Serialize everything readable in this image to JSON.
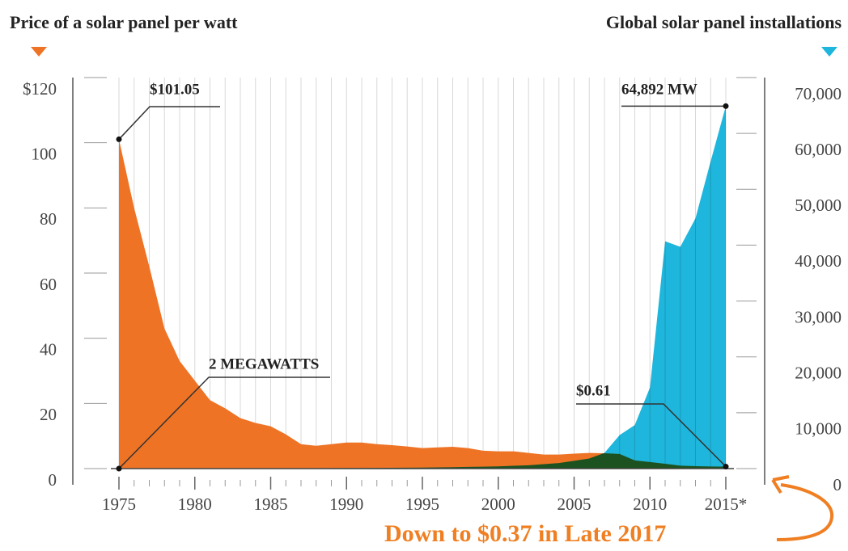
{
  "chart_data": {
    "type": "area",
    "left_axis_title": "Price of a solar panel per watt",
    "right_axis_title": "Global solar panel installations",
    "x": [
      1975,
      1976,
      1977,
      1978,
      1979,
      1980,
      1981,
      1982,
      1983,
      1984,
      1985,
      1986,
      1987,
      1988,
      1989,
      1990,
      1991,
      1992,
      1993,
      1994,
      1995,
      1996,
      1997,
      1998,
      1999,
      2000,
      2001,
      2002,
      2003,
      2004,
      2005,
      2006,
      2007,
      2008,
      2009,
      2010,
      2011,
      2012,
      2013,
      2014,
      2015
    ],
    "xlim": [
      1975,
      2015
    ],
    "xticks": [
      1975,
      1980,
      1985,
      1990,
      1995,
      2000,
      2005,
      2010,
      {
        "value": 2015,
        "label": "2015*"
      }
    ],
    "ylim": [
      0,
      120
    ],
    "yticks": [
      0,
      20,
      40,
      60,
      80,
      100,
      {
        "value": 120,
        "label": "$120"
      }
    ],
    "y2lim": [
      0,
      70000
    ],
    "y2ticks": [
      0,
      {
        "value": 10000,
        "label": "10,000"
      },
      {
        "value": 20000,
        "label": "20,000"
      },
      {
        "value": 30000,
        "label": "30,000"
      },
      {
        "value": 40000,
        "label": "40,000"
      },
      {
        "value": 50000,
        "label": "50,000"
      },
      {
        "value": 60000,
        "label": "60,000"
      },
      {
        "value": 70000,
        "label": "70,000"
      }
    ],
    "series": [
      {
        "name": "Price of a solar panel per watt",
        "color": "#ee7325",
        "axis": "y",
        "values": [
          101.05,
          80,
          62,
          43,
          33,
          27,
          21,
          18.5,
          15.5,
          14,
          13,
          10.5,
          7.5,
          7,
          7.5,
          8,
          8,
          7.5,
          7.2,
          6.8,
          6.3,
          6.5,
          6.7,
          6.3,
          5.5,
          5.3,
          5.3,
          4.8,
          4.3,
          4.3,
          4.6,
          4.8,
          4.7,
          4.5,
          2.5,
          2,
          1.5,
          0.9,
          0.75,
          0.65,
          0.61
        ]
      },
      {
        "name": "Global solar panel installations",
        "color": "#1eb6dc",
        "axis": "y2",
        "values": [
          2,
          3,
          4,
          6,
          8,
          10,
          14,
          20,
          30,
          40,
          50,
          60,
          70,
          80,
          90,
          100,
          110,
          120,
          140,
          160,
          180,
          220,
          260,
          300,
          350,
          400,
          500,
          600,
          800,
          1000,
          1400,
          1800,
          2800,
          6000,
          7800,
          14500,
          40700,
          39700,
          44800,
          55000,
          64892
        ]
      }
    ],
    "annotations": [
      {
        "text": "$101.05",
        "x": 1975,
        "y": 101.05
      },
      {
        "text": "64,892 MW",
        "x": 2015,
        "y": 64892
      },
      {
        "text": "2 MEGAWATTS",
        "x": 1975,
        "y": 2
      },
      {
        "text": "$0.61",
        "x": 2015,
        "y": 0.61
      }
    ],
    "note": "Down to $0.37 in Late 2017"
  }
}
